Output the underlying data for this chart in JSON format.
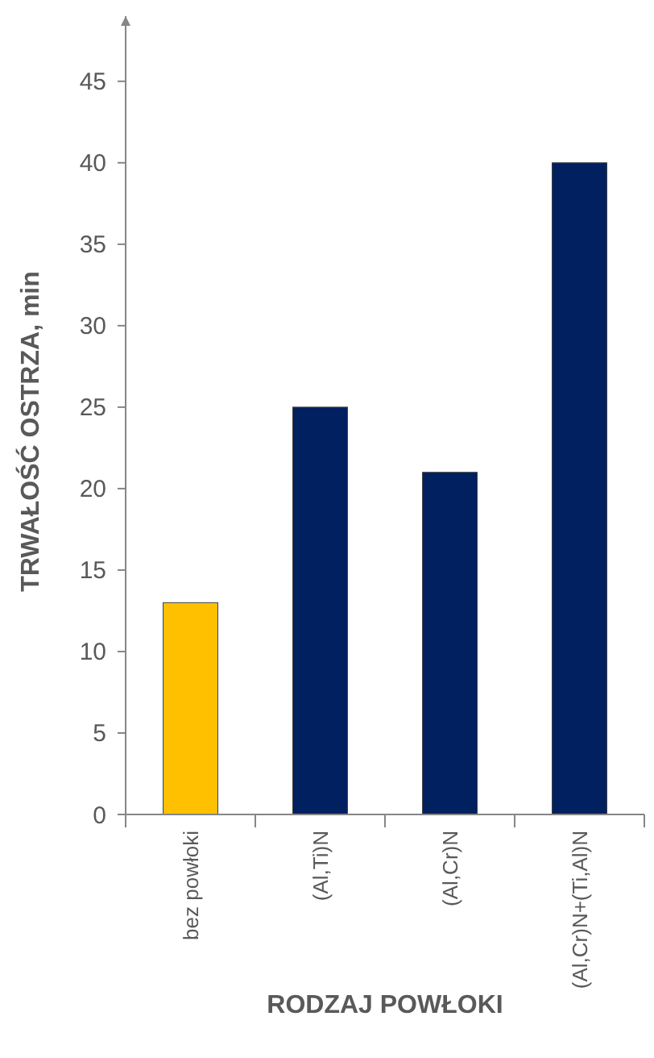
{
  "chart_data": {
    "type": "bar",
    "xlabel": "RODZAJ POWŁOKI",
    "ylabel": "TRWAŁOŚĆ OSTRZA, min",
    "categories": [
      "bez powłoki",
      "(Al,Ti)N",
      "(Al,Cr)N",
      "(Al,Cr)N+(Ti,Al)N"
    ],
    "values": [
      13,
      25,
      21,
      40
    ],
    "colors": [
      "#ffc000",
      "#002060",
      "#002060",
      "#002060"
    ],
    "ylim": [
      0,
      49
    ],
    "yticks": [
      0,
      5,
      10,
      15,
      20,
      25,
      30,
      35,
      40,
      45
    ],
    "grid": false
  }
}
